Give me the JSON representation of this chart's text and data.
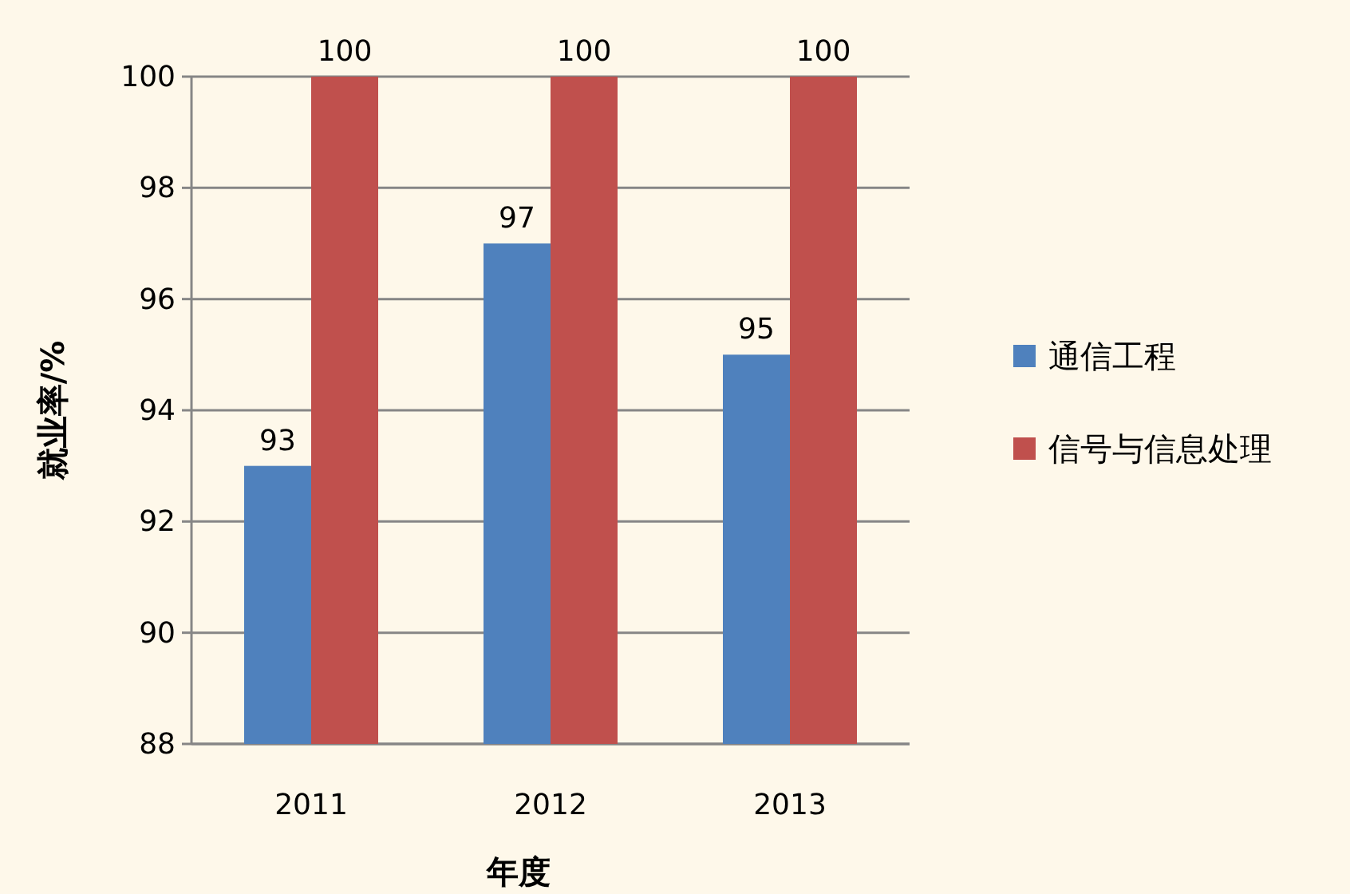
{
  "chart_data": {
    "type": "bar",
    "xlabel": "年度",
    "ylabel": "就业率/%",
    "categories": [
      "2011",
      "2012",
      "2013"
    ],
    "series": [
      {
        "name": "通信工程",
        "color": "#4f81bd",
        "values": [
          93,
          97,
          95
        ]
      },
      {
        "name": "信号与信息处理",
        "color": "#c0504d",
        "values": [
          100,
          100,
          100
        ]
      }
    ],
    "ylim": [
      88,
      100
    ],
    "yticks": [
      88,
      90,
      92,
      94,
      96,
      98,
      100
    ],
    "grid": "y",
    "legend": "right",
    "data_labels": true
  }
}
